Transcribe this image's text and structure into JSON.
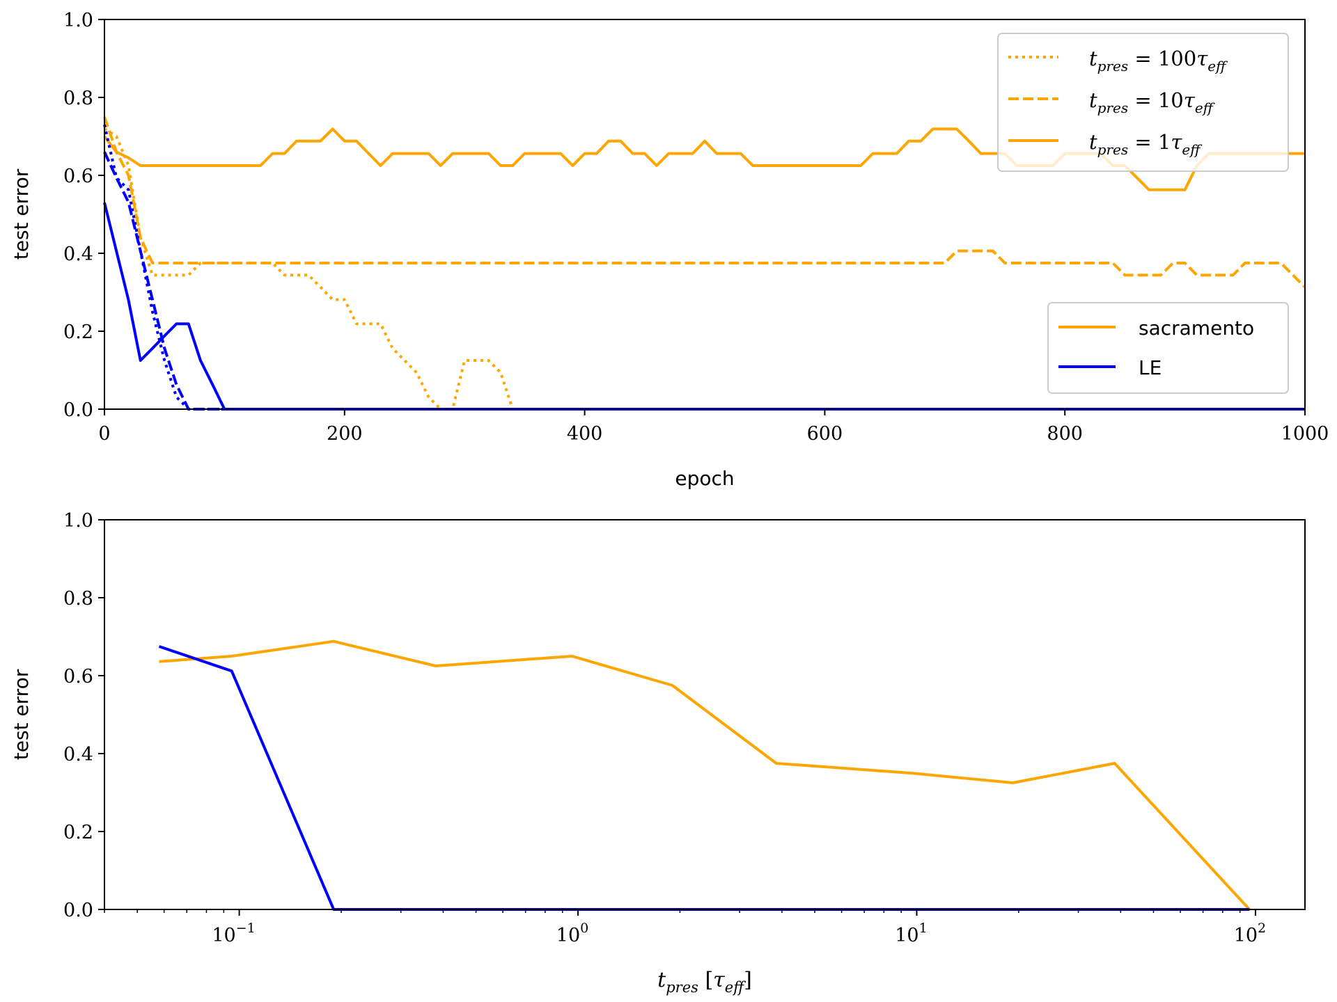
{
  "colors": {
    "sacramento": "#FFA500",
    "LE": "#0000FF"
  },
  "chart_data": [
    {
      "type": "line",
      "xlabel": "epoch",
      "ylabel": "test error",
      "xlim": [
        0,
        1000
      ],
      "ylim": [
        0.0,
        1.0
      ],
      "x_ticks": [
        "0",
        "200",
        "400",
        "600",
        "800",
        "1000"
      ],
      "y_ticks": [
        "0.0",
        "0.2",
        "0.4",
        "0.6",
        "0.8",
        "1.0"
      ],
      "legends": [
        {
          "placement": "top-right",
          "entries": [
            {
              "style": "dotted",
              "label": "t_pres = 100τ_eff"
            },
            {
              "style": "dashed",
              "label": "t_pres = 10τ_eff"
            },
            {
              "style": "solid",
              "label": "t_pres = 1τ_eff"
            }
          ]
        },
        {
          "placement": "center-right",
          "entries": [
            {
              "color": "#FFA500",
              "label": "sacramento"
            },
            {
              "color": "#0000FF",
              "label": "LE"
            }
          ]
        }
      ],
      "series": [
        {
          "model": "sacramento",
          "style": "solid",
          "t_pres": "1",
          "x": [
            0,
            10,
            20,
            30,
            40,
            130,
            140,
            150,
            160,
            170,
            180,
            190,
            200,
            210,
            220,
            230,
            240,
            250,
            260,
            270,
            280,
            290,
            300,
            310,
            320,
            330,
            340,
            350,
            360,
            370,
            380,
            390,
            400,
            410,
            420,
            430,
            440,
            450,
            460,
            470,
            480,
            490,
            500,
            510,
            520,
            530,
            540,
            630,
            640,
            650,
            660,
            670,
            680,
            690,
            700,
            710,
            720,
            730,
            740,
            750,
            760,
            770,
            780,
            790,
            800,
            810,
            820,
            830,
            840,
            850,
            860,
            870,
            880,
            890,
            900,
            910,
            920,
            930,
            1000
          ],
          "y": [
            0.7,
            0.66,
            0.645,
            0.625,
            0.625,
            0.625,
            0.656,
            0.656,
            0.688,
            0.688,
            0.688,
            0.719,
            0.688,
            0.688,
            0.656,
            0.625,
            0.656,
            0.656,
            0.656,
            0.656,
            0.625,
            0.656,
            0.656,
            0.656,
            0.656,
            0.625,
            0.625,
            0.656,
            0.656,
            0.656,
            0.656,
            0.625,
            0.656,
            0.656,
            0.688,
            0.688,
            0.656,
            0.656,
            0.625,
            0.656,
            0.656,
            0.656,
            0.688,
            0.656,
            0.656,
            0.656,
            0.625,
            0.625,
            0.656,
            0.656,
            0.656,
            0.688,
            0.688,
            0.719,
            0.719,
            0.719,
            0.688,
            0.656,
            0.656,
            0.656,
            0.625,
            0.625,
            0.625,
            0.625,
            0.656,
            0.656,
            0.656,
            0.656,
            0.625,
            0.625,
            0.594,
            0.563,
            0.563,
            0.563,
            0.563,
            0.625,
            0.656,
            0.656,
            0.656
          ]
        },
        {
          "model": "sacramento",
          "style": "dashed",
          "t_pres": "10",
          "x": [
            0,
            10,
            20,
            30,
            40,
            700,
            710,
            720,
            730,
            740,
            750,
            760,
            830,
            840,
            850,
            860,
            870,
            880,
            890,
            900,
            910,
            920,
            930,
            940,
            950,
            960,
            970,
            980,
            990,
            1000
          ],
          "y": [
            0.75,
            0.66,
            0.6,
            0.44,
            0.375,
            0.375,
            0.406,
            0.406,
            0.406,
            0.406,
            0.375,
            0.375,
            0.375,
            0.375,
            0.344,
            0.344,
            0.344,
            0.344,
            0.375,
            0.375,
            0.344,
            0.344,
            0.344,
            0.344,
            0.375,
            0.375,
            0.375,
            0.375,
            0.344,
            0.313
          ]
        },
        {
          "model": "sacramento",
          "style": "dotted",
          "t_pres": "100",
          "x": [
            0,
            10,
            20,
            30,
            40,
            50,
            60,
            70,
            80,
            130,
            140,
            150,
            160,
            170,
            180,
            190,
            200,
            210,
            220,
            230,
            240,
            250,
            260,
            270,
            280,
            290,
            300,
            310,
            320,
            330,
            340
          ],
          "y": [
            0.72,
            0.7,
            0.625,
            0.44,
            0.344,
            0.344,
            0.344,
            0.344,
            0.375,
            0.375,
            0.375,
            0.344,
            0.344,
            0.344,
            0.313,
            0.281,
            0.281,
            0.219,
            0.219,
            0.219,
            0.156,
            0.125,
            0.094,
            0.031,
            0.0,
            0.0,
            0.125,
            0.125,
            0.125,
            0.094,
            0.0
          ]
        },
        {
          "model": "LE",
          "style": "solid",
          "t_pres": "1",
          "x": [
            0,
            20,
            30,
            40,
            50,
            60,
            70,
            80,
            90,
            100,
            1000
          ],
          "y": [
            0.53,
            0.28,
            0.125,
            0.156,
            0.188,
            0.219,
            0.219,
            0.125,
            0.063,
            0.0,
            0.0
          ]
        },
        {
          "model": "LE",
          "style": "dashed",
          "t_pres": "10",
          "x": [
            0,
            10,
            20,
            30,
            40,
            50,
            60,
            70,
            1000
          ],
          "y": [
            0.66,
            0.594,
            0.531,
            0.406,
            0.281,
            0.156,
            0.063,
            0.0,
            0.0
          ]
        },
        {
          "model": "LE",
          "style": "dotted",
          "t_pres": "100",
          "x": [
            0,
            10,
            20,
            30,
            40,
            50,
            60,
            70,
            1000
          ],
          "y": [
            0.73,
            0.594,
            0.563,
            0.406,
            0.25,
            0.125,
            0.031,
            0.0,
            0.0
          ]
        }
      ]
    },
    {
      "type": "line",
      "xlabel": "t_pres [τ_eff]",
      "ylabel": "test error",
      "xscale": "log",
      "xlim": [
        0.04,
        140
      ],
      "ylim": [
        0.0,
        1.0
      ],
      "x_ticks": [
        {
          "base": "10",
          "exp": "−1"
        },
        {
          "base": "10",
          "exp": "0"
        },
        {
          "base": "10",
          "exp": "1"
        },
        {
          "base": "10",
          "exp": "2"
        }
      ],
      "y_ticks": [
        "0.0",
        "0.2",
        "0.4",
        "0.6",
        "0.8",
        "1.0"
      ],
      "series": [
        {
          "model": "sacramento",
          "x": [
            0.058,
            0.095,
            0.19,
            0.38,
            0.96,
            1.9,
            3.85,
            9.6,
            19.2,
            38.4,
            96
          ],
          "y": [
            0.636,
            0.65,
            0.688,
            0.625,
            0.65,
            0.575,
            0.375,
            0.35,
            0.325,
            0.375,
            0.0
          ]
        },
        {
          "model": "LE",
          "x": [
            0.058,
            0.095,
            0.19,
            0.38,
            0.96,
            1.9,
            3.85,
            9.6,
            19.2,
            38.4,
            96
          ],
          "y": [
            0.675,
            0.612,
            0.0,
            0.0,
            0.0,
            0.0,
            0.0,
            0.0,
            0.0,
            0.0,
            0.0
          ]
        }
      ]
    }
  ]
}
